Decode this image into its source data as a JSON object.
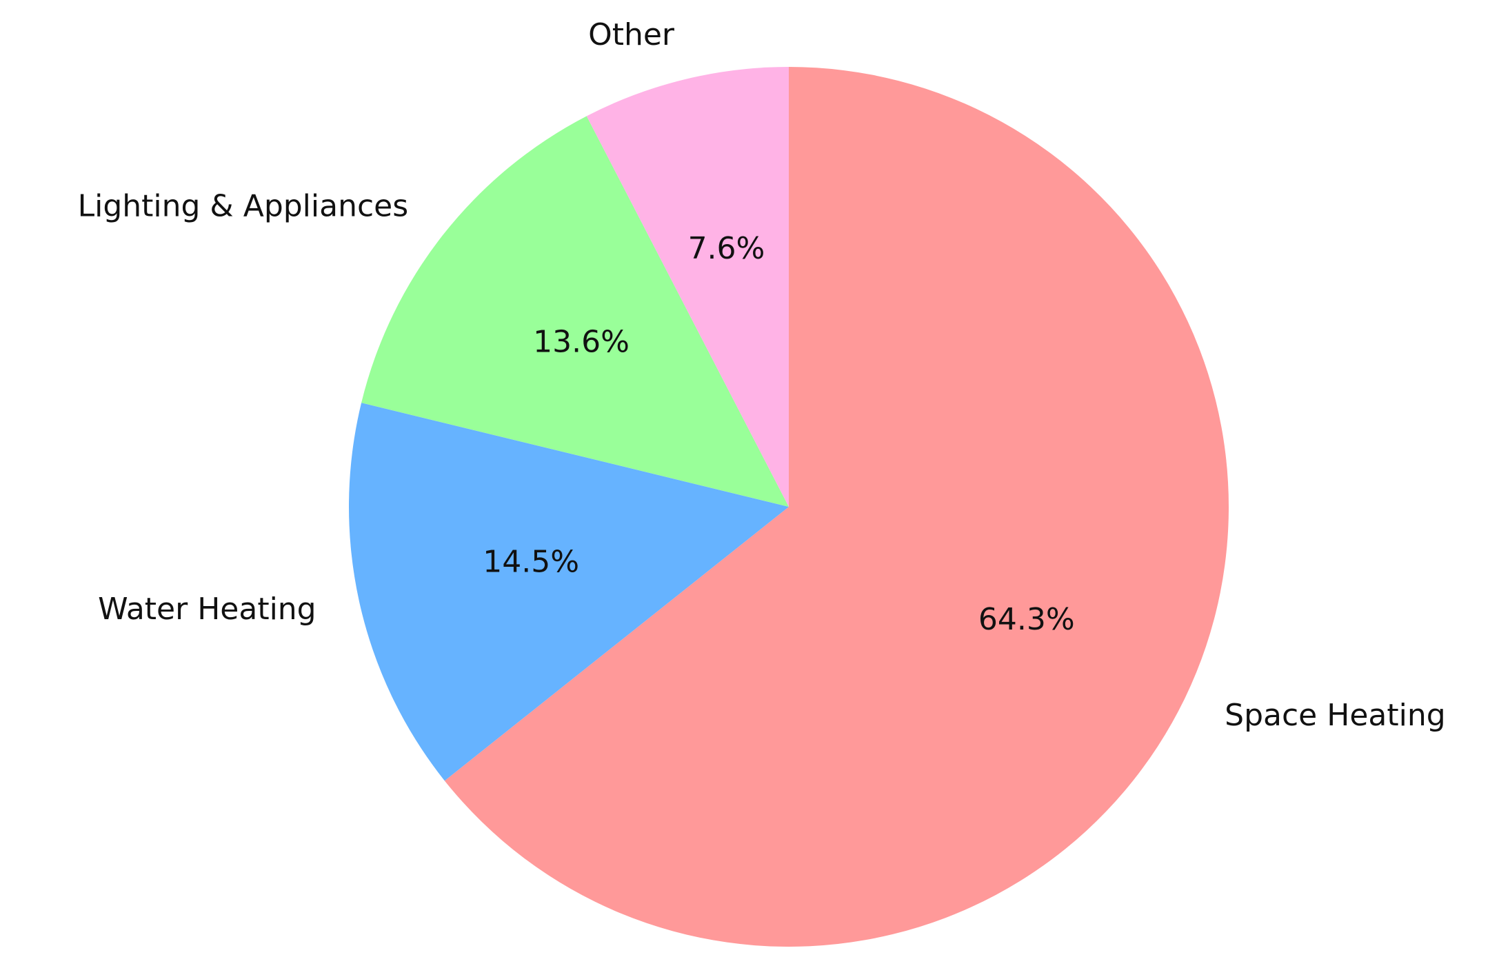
{
  "chart_data": {
    "type": "pie",
    "categories": [
      "Space Heating",
      "Water Heating",
      "Lighting & Appliances",
      "Other"
    ],
    "values": [
      64.3,
      14.5,
      13.6,
      7.6
    ],
    "value_labels": [
      "64.3%",
      "14.5%",
      "13.6%",
      "7.6%"
    ],
    "colors": [
      "#ff9999",
      "#66b3ff",
      "#99ff99",
      "#ffb3e6"
    ]
  }
}
